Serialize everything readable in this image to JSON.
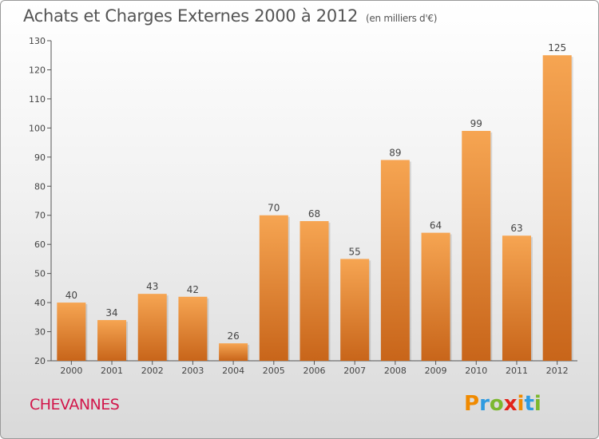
{
  "header": {
    "title": "Achats et Charges Externes 2000 à 2012",
    "unit": "(en milliers d'€)"
  },
  "footer": {
    "town": "CHEVANNES",
    "logo_letters": [
      "P",
      "r",
      "o",
      "x",
      "i",
      "t",
      "i"
    ],
    "logo_colors": [
      "#f08a00",
      "#2f9be0",
      "#7cb82f",
      "#e2231a",
      "#f08a00",
      "#2f9be0",
      "#7cb82f"
    ]
  },
  "chart_data": {
    "type": "bar",
    "title": "Achats et Charges Externes 2000 à 2012",
    "subtitle": "(en milliers d'€)",
    "categories": [
      "2000",
      "2001",
      "2002",
      "2003",
      "2004",
      "2005",
      "2006",
      "2007",
      "2008",
      "2009",
      "2010",
      "2011",
      "2012"
    ],
    "values": [
      40,
      34,
      43,
      42,
      26,
      70,
      68,
      55,
      89,
      64,
      99,
      63,
      125
    ],
    "ylim": [
      20,
      130
    ],
    "yticks": [
      20,
      30,
      40,
      50,
      60,
      70,
      80,
      90,
      100,
      110,
      120,
      130
    ],
    "grid": false,
    "bar_color_top": "#f6a552",
    "bar_color_bottom": "#c8651a"
  }
}
